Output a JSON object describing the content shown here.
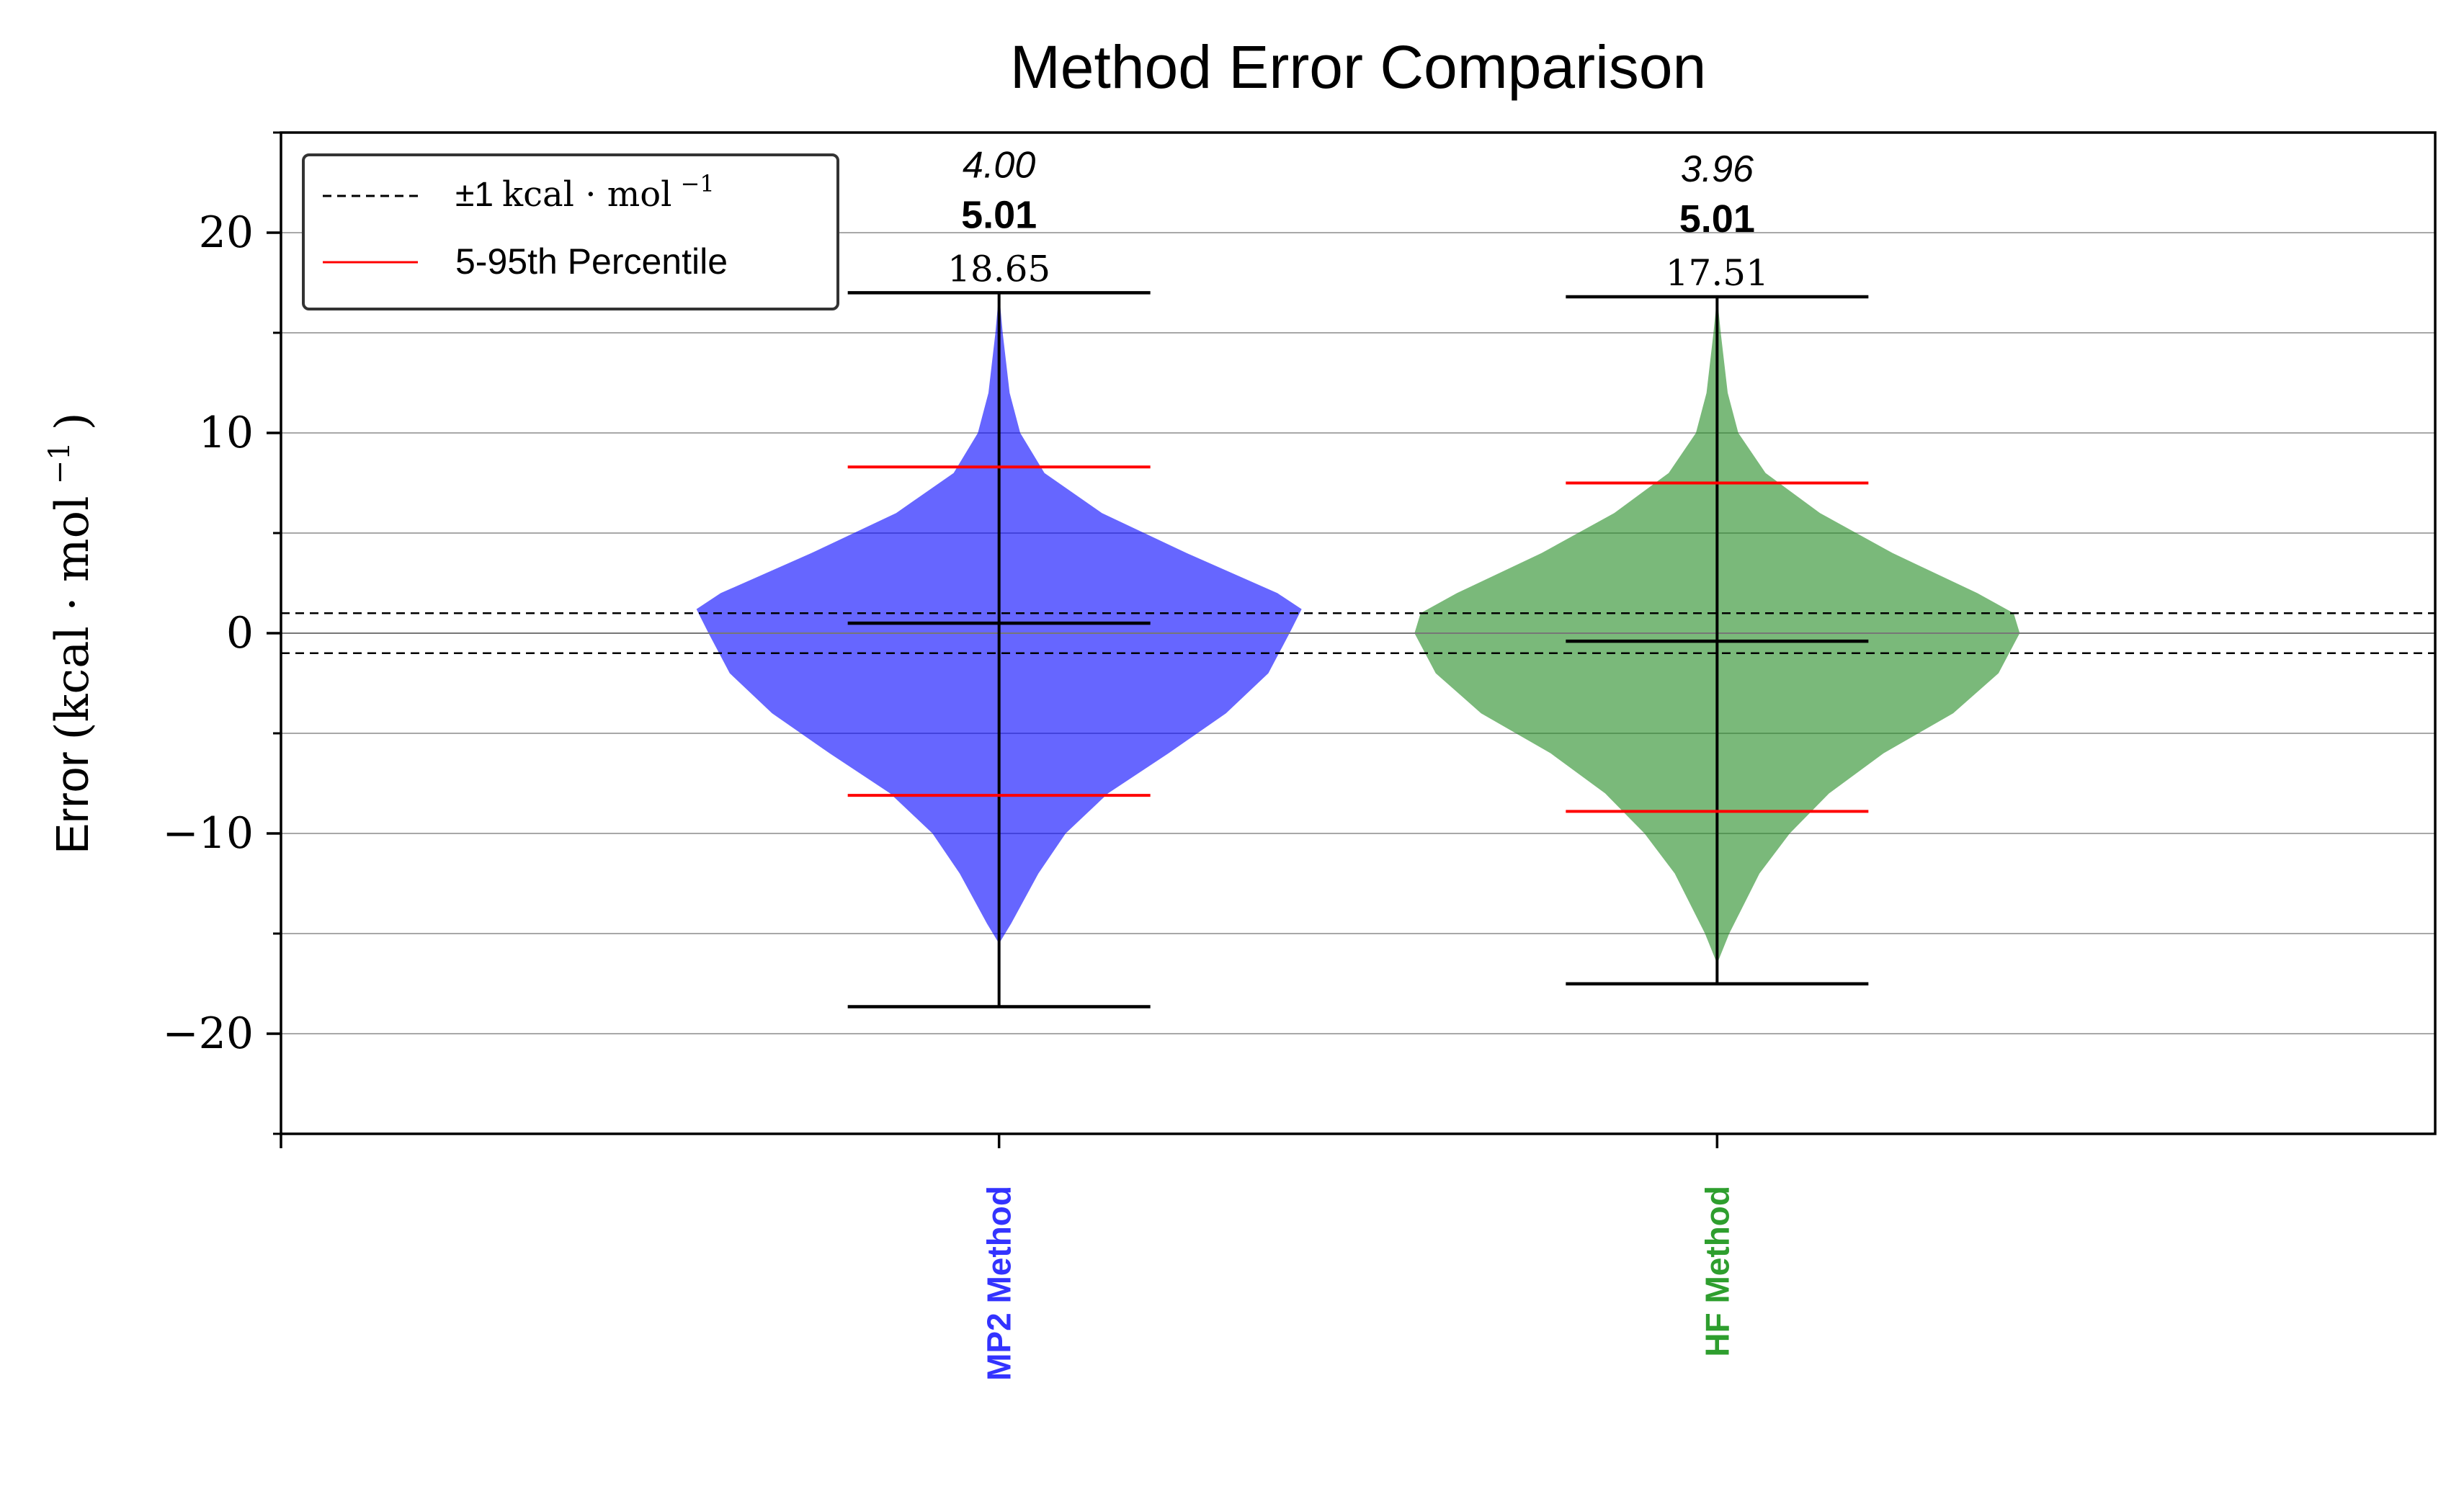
{
  "chart_data": {
    "type": "violin",
    "title": "Method Error Comparison",
    "ylabel_prefix": "Error",
    "ylabel_units": "(kcal · mol",
    "ylabel_exp": "−1",
    "ylabel_close": ")",
    "ylim": [
      -25,
      25
    ],
    "yticks": [
      {
        "value": -20,
        "label": "−20"
      },
      {
        "value": -10,
        "label": "−10"
      },
      {
        "value": 0,
        "label": "0"
      },
      {
        "value": 10,
        "label": "10"
      },
      {
        "value": 20,
        "label": "20"
      }
    ],
    "minor_yticks": [
      -25,
      -15,
      -5,
      5,
      15,
      25
    ],
    "grid_lines": [
      -20,
      -15,
      -10,
      -5,
      0,
      5,
      10,
      15,
      20
    ],
    "reference_band": 1,
    "legend": {
      "placement": "top-left",
      "band_label_pm": "±1",
      "band_label_units": "kcal · mol",
      "band_label_exp": "−1",
      "percentile_label": "5-95th Percentile"
    },
    "series": [
      {
        "name": "MP2 Method",
        "color": "#0000ff",
        "label_color": "#3333ff",
        "x": 1,
        "min": -18.65,
        "max": 17.0,
        "median": 0.5,
        "p5": -8.1,
        "p95": 8.3,
        "stat_italic": "4.00",
        "stat_bold": "5.01",
        "stat_plain": "18.65",
        "density": [
          {
            "y": -15.5,
            "w": 0.0
          },
          {
            "y": -14.5,
            "w": 0.04
          },
          {
            "y": -12,
            "w": 0.13
          },
          {
            "y": -10,
            "w": 0.22
          },
          {
            "y": -8,
            "w": 0.36
          },
          {
            "y": -6,
            "w": 0.56
          },
          {
            "y": -4,
            "w": 0.75
          },
          {
            "y": -2,
            "w": 0.89
          },
          {
            "y": 0,
            "w": 0.96
          },
          {
            "y": 1.2,
            "w": 1.0
          },
          {
            "y": 2,
            "w": 0.92
          },
          {
            "y": 4,
            "w": 0.62
          },
          {
            "y": 6,
            "w": 0.34
          },
          {
            "y": 8,
            "w": 0.15
          },
          {
            "y": 10,
            "w": 0.07
          },
          {
            "y": 12,
            "w": 0.035
          },
          {
            "y": 15,
            "w": 0.012
          },
          {
            "y": 17.0,
            "w": 0.0
          }
        ]
      },
      {
        "name": "HF Method",
        "color": "#228b22",
        "label_color": "#2e9e2e",
        "x": 2,
        "min": -17.51,
        "max": 16.8,
        "median": -0.4,
        "p5": -8.9,
        "p95": 7.5,
        "stat_italic": "3.96",
        "stat_bold": "5.01",
        "stat_plain": "17.51",
        "density": [
          {
            "y": -16.5,
            "w": 0.0
          },
          {
            "y": -15,
            "w": 0.04
          },
          {
            "y": -12,
            "w": 0.14
          },
          {
            "y": -10,
            "w": 0.24
          },
          {
            "y": -8,
            "w": 0.37
          },
          {
            "y": -6,
            "w": 0.55
          },
          {
            "y": -4,
            "w": 0.78
          },
          {
            "y": -2,
            "w": 0.93
          },
          {
            "y": 0,
            "w": 1.0
          },
          {
            "y": 1,
            "w": 0.98
          },
          {
            "y": 2,
            "w": 0.86
          },
          {
            "y": 4,
            "w": 0.58
          },
          {
            "y": 6,
            "w": 0.34
          },
          {
            "y": 8,
            "w": 0.16
          },
          {
            "y": 10,
            "w": 0.07
          },
          {
            "y": 12,
            "w": 0.035
          },
          {
            "y": 15,
            "w": 0.012
          },
          {
            "y": 16.8,
            "w": 0.0
          }
        ]
      }
    ]
  }
}
